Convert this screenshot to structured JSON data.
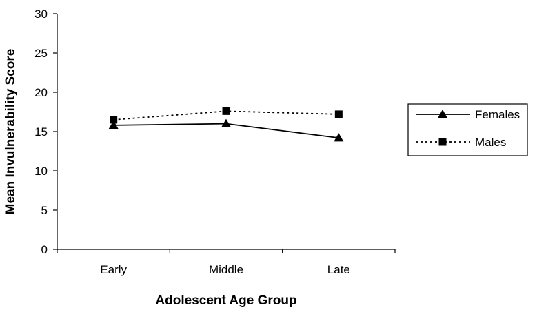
{
  "chart_data": {
    "type": "line",
    "xlabel": "Adolescent Age Group",
    "ylabel": "Mean Invulnerability Score",
    "categories": [
      "Early",
      "Middle",
      "Late"
    ],
    "ylim": [
      0,
      30
    ],
    "yticks": [
      0,
      5,
      10,
      15,
      20,
      25,
      30
    ],
    "grid": false,
    "legend_position": "right",
    "series": [
      {
        "name": "Females",
        "values": [
          15.8,
          16.0,
          14.2
        ],
        "line_style": "solid",
        "marker": "triangle",
        "color": "#000000"
      },
      {
        "name": "Males",
        "values": [
          16.5,
          17.6,
          17.2
        ],
        "line_style": "dotted",
        "marker": "square",
        "color": "#000000"
      }
    ]
  }
}
